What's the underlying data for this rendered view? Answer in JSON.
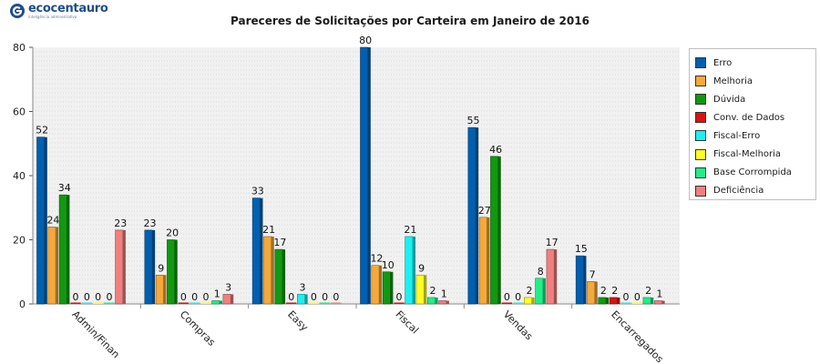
{
  "branding": {
    "logo_name": "ecocentauro",
    "logo_tagline": "inteligência administrativa"
  },
  "chart_data": {
    "type": "bar",
    "title": "Pareceres de Solicitações por Carteira em Janeiro de 2016",
    "xlabel": "",
    "ylabel": "",
    "ylim": [
      0,
      80
    ],
    "yticks": [
      0,
      20,
      40,
      60,
      80
    ],
    "grid": true,
    "legend_position": "right",
    "categories": [
      "Admin/Finan",
      "Compras",
      "Easy",
      "Fiscal",
      "Vendas",
      "Encarregados"
    ],
    "series": [
      {
        "name": "Erro",
        "color": "#0060b0",
        "values": [
          52,
          23,
          33,
          80,
          55,
          15
        ]
      },
      {
        "name": "Melhoria",
        "color": "#f5a93a",
        "values": [
          24,
          9,
          21,
          12,
          27,
          7
        ]
      },
      {
        "name": "Dúvida",
        "color": "#119911",
        "values": [
          34,
          20,
          17,
          10,
          46,
          2
        ]
      },
      {
        "name": "Conv. de Dados",
        "color": "#dd1111",
        "values": [
          0,
          0,
          0,
          0,
          0,
          2
        ]
      },
      {
        "name": "Fiscal-Erro",
        "color": "#1cf0f0",
        "values": [
          0,
          0,
          3,
          21,
          0,
          0
        ]
      },
      {
        "name": "Fiscal-Melhoria",
        "color": "#ffff22",
        "values": [
          0,
          0,
          0,
          9,
          2,
          0
        ]
      },
      {
        "name": "Base Corrompida",
        "color": "#22ee88",
        "values": [
          0,
          1,
          0,
          2,
          8,
          2
        ]
      },
      {
        "name": "Deficiência",
        "color": "#f08080",
        "values": [
          23,
          3,
          0,
          1,
          17,
          1
        ]
      }
    ]
  }
}
